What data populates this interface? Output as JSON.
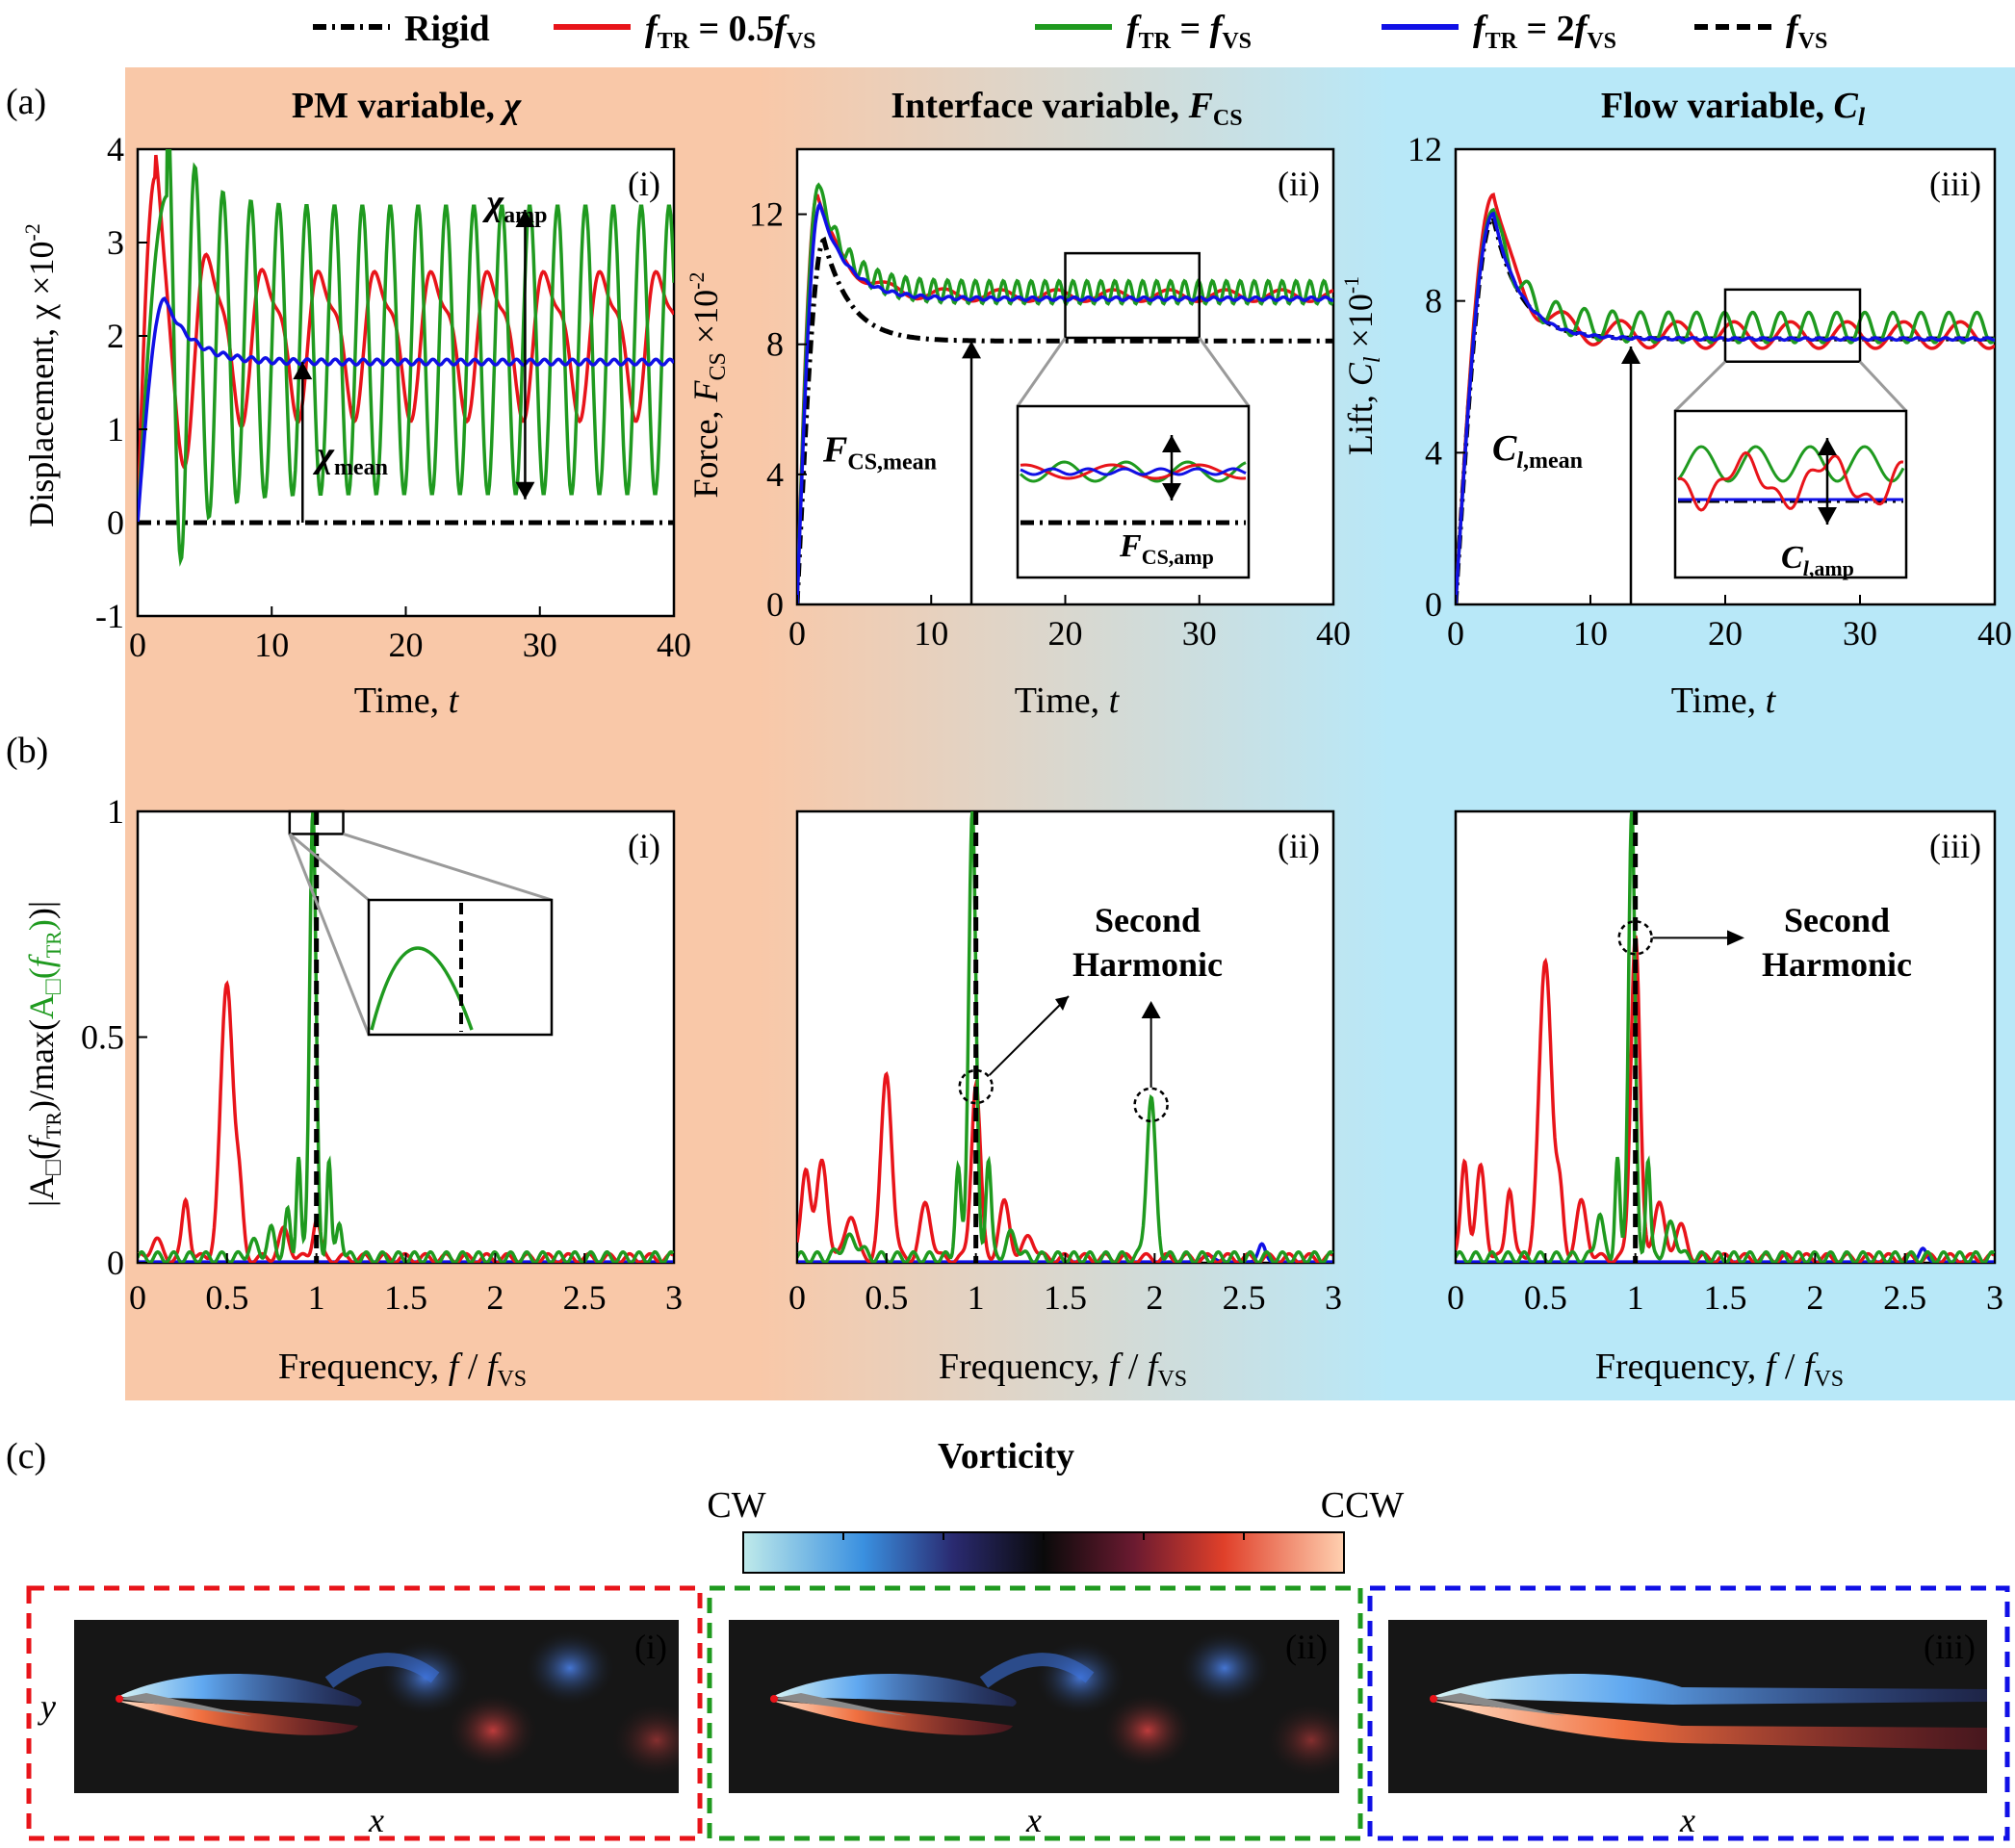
{
  "legend": [
    {
      "name": "Rigid",
      "color": "#000000",
      "dash": "dashdot"
    },
    {
      "name": "fTR = 0.5fVS",
      "color": "#e8141a",
      "dash": "solid"
    },
    {
      "name": "fTR = fVS",
      "color": "#1f9a1f",
      "dash": "solid"
    },
    {
      "name": "fTR = 2fVS",
      "color": "#1010e6",
      "dash": "solid"
    },
    {
      "name": "fVS",
      "color": "#000000",
      "dash": "dashed"
    }
  ],
  "row_labels": {
    "a": "(a)",
    "b": "(b)",
    "c": "(c)"
  },
  "colors": {
    "bg_left": "#f9c8a8",
    "bg_right": "#b8e8f8",
    "red": "#e8141a",
    "green": "#1f9a1f",
    "blue": "#1010e6",
    "black": "#000000",
    "gray": "#9a9a9a"
  },
  "columns": [
    {
      "title": "PM variable, χ",
      "ylabel": "Displacement, χ ×10⁻²",
      "xlabel": "Time, t",
      "panel": "(i)"
    },
    {
      "title": "Interface variable, FCS",
      "ylabel": "Force, FCS ×10⁻²",
      "xlabel": "Time, t",
      "panel": "(ii)"
    },
    {
      "title": "Flow variable, Cl",
      "ylabel": "Lift, Cl ×10⁻¹",
      "xlabel": "Time, t",
      "panel": "(iii)"
    }
  ],
  "annotations": {
    "chi_amp": "χamp",
    "chi_mean": "χmean",
    "fcs_mean": "FCS,mean",
    "fcs_amp": "FCS,amp",
    "cl_mean": "Cl,mean",
    "cl_amp": "Cl,amp",
    "second_harmonic": [
      "Second",
      "Harmonic"
    ]
  },
  "spectrum_ylabel": "|A□(fTR)/max(A□(fTR))|",
  "spectrum_xlabel": "Frequency, f / fVS",
  "vorticity": {
    "title": "Vorticity",
    "left": "CW",
    "right": "CCW",
    "xlabel": "x",
    "ylabel": "y",
    "panels": [
      "(i)",
      "(ii)",
      "(iii)"
    ]
  },
  "chart_data": [
    {
      "type": "line",
      "id": "a-i",
      "xlim": [
        0,
        40
      ],
      "ylim": [
        -1,
        4
      ],
      "xticks": [
        0,
        10,
        20,
        30,
        40
      ],
      "yticks": [
        -1,
        0,
        1,
        2,
        3,
        4
      ],
      "series": [
        {
          "name": "Rigid",
          "color": "#000000",
          "dash": "dashdot",
          "t": [
            0,
            40
          ],
          "y": [
            0,
            0
          ]
        },
        {
          "name": "fTR = 0.5fVS",
          "color": "#e8141a",
          "model": {
            "type": "osc",
            "t0": 0,
            "peak": 3.7,
            "tpeak": 1.3,
            "mean": 2.0,
            "amp": 0.7,
            "period": 4.2
          }
        },
        {
          "name": "fTR = fVS",
          "color": "#1f9a1f",
          "model": {
            "type": "osc",
            "t0": 0,
            "peak": 3.5,
            "tpeak": 2.2,
            "mean": 1.85,
            "amp": 1.55,
            "period": 2.08
          }
        },
        {
          "name": "fTR = 2fVS",
          "color": "#1010e6",
          "model": {
            "type": "settle",
            "peak": 2.4,
            "tpeak": 2.0,
            "mean": 1.72,
            "amp": 0.03,
            "period": 1.04
          }
        }
      ]
    },
    {
      "type": "line",
      "id": "a-ii",
      "xlim": [
        0,
        40
      ],
      "ylim": [
        0,
        14
      ],
      "xticks": [
        0,
        10,
        20,
        30,
        40
      ],
      "yticks": [
        0,
        4,
        8,
        12
      ],
      "series": [
        {
          "name": "Rigid",
          "color": "#000000",
          "dash": "dashdot",
          "model": {
            "type": "settle",
            "peak": 11.2,
            "tpeak": 2.0,
            "mean": 8.1,
            "amp": 0,
            "period": 2.08
          }
        },
        {
          "name": "fTR = 0.5fVS",
          "color": "#e8141a",
          "model": {
            "type": "settle",
            "peak": 12.6,
            "tpeak": 1.5,
            "mean": 9.5,
            "amp": 0.18,
            "period": 4.2
          }
        },
        {
          "name": "fTR = fVS",
          "color": "#1f9a1f",
          "model": {
            "type": "settle",
            "peak": 12.9,
            "tpeak": 1.6,
            "mean": 9.6,
            "amp": 0.35,
            "period": 1.04
          }
        },
        {
          "name": "fTR = 2fVS",
          "color": "#1010e6",
          "model": {
            "type": "settle",
            "peak": 12.3,
            "tpeak": 1.7,
            "mean": 9.4,
            "amp": 0.05,
            "period": 1.04
          }
        }
      ]
    },
    {
      "type": "line",
      "id": "a-iii",
      "xlim": [
        0,
        40
      ],
      "ylim": [
        0,
        12
      ],
      "xticks": [
        0,
        10,
        20,
        30,
        40
      ],
      "yticks": [
        0,
        4,
        8,
        12
      ],
      "series": [
        {
          "name": "Rigid",
          "color": "#000000",
          "dash": "dashdot",
          "model": {
            "type": "settle",
            "peak": 10.2,
            "tpeak": 2.8,
            "mean": 7.0,
            "amp": 0,
            "period": 2.08
          }
        },
        {
          "name": "fTR = 0.5fVS",
          "color": "#e8141a",
          "model": {
            "type": "settle",
            "peak": 10.8,
            "tpeak": 2.8,
            "mean": 7.1,
            "amp": 0.35,
            "period": 4.2
          }
        },
        {
          "name": "fTR = fVS",
          "color": "#1f9a1f",
          "model": {
            "type": "settle",
            "peak": 10.4,
            "tpeak": 2.8,
            "mean": 7.3,
            "amp": 0.4,
            "period": 2.08
          }
        },
        {
          "name": "fTR = 2fVS",
          "color": "#1010e6",
          "model": {
            "type": "settle",
            "peak": 10.3,
            "tpeak": 2.8,
            "mean": 7.0,
            "amp": 0.03,
            "period": 1.04
          }
        }
      ]
    },
    {
      "type": "line",
      "id": "b-i",
      "xlim": [
        0,
        3
      ],
      "ylim": [
        0,
        1
      ],
      "xticks": [
        "0",
        "0.5",
        "1",
        "1.5",
        "2",
        "2.5",
        "3"
      ],
      "yticks": [
        "0",
        "0.5",
        "1"
      ],
      "series": [
        {
          "name": "fTR = 0.5fVS",
          "color": "#e8141a",
          "peaks": [
            [
              0.5,
              0.61,
              0.035
            ],
            [
              0.27,
              0.13,
              0.02
            ],
            [
              0.57,
              0.12,
              0.02
            ],
            [
              0.82,
              0.06,
              0.03
            ],
            [
              1.0,
              0.09,
              0.02
            ],
            [
              0.1,
              0.04,
              0.03
            ]
          ]
        },
        {
          "name": "fTR = fVS",
          "color": "#1f9a1f",
          "peaks": [
            [
              0.98,
              1.0,
              0.018
            ],
            [
              0.9,
              0.22,
              0.012
            ],
            [
              1.07,
              0.22,
              0.012
            ],
            [
              0.84,
              0.1,
              0.015
            ],
            [
              1.13,
              0.08,
              0.015
            ],
            [
              0.75,
              0.06,
              0.02
            ],
            [
              0.65,
              0.03,
              0.03
            ]
          ]
        },
        {
          "name": "fTR = 2fVS",
          "color": "#1010e6",
          "peaks": []
        }
      ],
      "vline": {
        "x": 1.0,
        "label": "fVS"
      }
    },
    {
      "type": "line",
      "id": "b-ii",
      "xlim": [
        0,
        3
      ],
      "ylim": [
        0,
        1
      ],
      "xticks": [
        "0",
        "0.5",
        "1",
        "1.5",
        "2",
        "2.5",
        "3"
      ],
      "yticks": [],
      "series": [
        {
          "name": "fTR = 0.5fVS",
          "color": "#e8141a",
          "peaks": [
            [
              0.5,
              0.41,
              0.03
            ],
            [
              1.0,
              0.39,
              0.025
            ],
            [
              0.05,
              0.2,
              0.025
            ],
            [
              0.14,
              0.21,
              0.03
            ],
            [
              0.3,
              0.1,
              0.03
            ],
            [
              0.72,
              0.12,
              0.03
            ],
            [
              1.16,
              0.12,
              0.03
            ],
            [
              1.3,
              0.05,
              0.03
            ]
          ]
        },
        {
          "name": "fTR = fVS",
          "color": "#1f9a1f",
          "peaks": [
            [
              0.98,
              1.0,
              0.02
            ],
            [
              1.98,
              0.35,
              0.025
            ],
            [
              0.9,
              0.2,
              0.015
            ],
            [
              1.07,
              0.22,
              0.015
            ],
            [
              1.2,
              0.05,
              0.03
            ],
            [
              0.3,
              0.04,
              0.05
            ]
          ]
        },
        {
          "name": "fTR = 2fVS",
          "color": "#1010e6",
          "peaks": [
            [
              2.6,
              0.04,
              0.02
            ],
            [
              2.3,
              0.015,
              0.03
            ]
          ]
        }
      ],
      "vline": {
        "x": 1.0,
        "label": "fVS"
      },
      "circles": [
        [
          1.0,
          0.39
        ],
        [
          1.98,
          0.35
        ]
      ]
    },
    {
      "type": "line",
      "id": "b-iii",
      "xlim": [
        0,
        3
      ],
      "ylim": [
        0,
        1
      ],
      "xticks": [
        "0",
        "0.5",
        "1",
        "1.5",
        "2",
        "2.5",
        "3"
      ],
      "yticks": [],
      "series": [
        {
          "name": "fTR = 0.5fVS",
          "color": "#e8141a",
          "peaks": [
            [
              0.5,
              0.66,
              0.035
            ],
            [
              1.0,
              0.72,
              0.025
            ],
            [
              0.05,
              0.22,
              0.02
            ],
            [
              0.14,
              0.2,
              0.025
            ],
            [
              0.3,
              0.16,
              0.02
            ],
            [
              0.58,
              0.13,
              0.02
            ],
            [
              0.7,
              0.12,
              0.03
            ],
            [
              1.13,
              0.12,
              0.03
            ],
            [
              1.25,
              0.07,
              0.03
            ]
          ]
        },
        {
          "name": "fTR = fVS",
          "color": "#1f9a1f",
          "peaks": [
            [
              0.98,
              1.0,
              0.018
            ],
            [
              0.9,
              0.22,
              0.013
            ],
            [
              1.07,
              0.22,
              0.013
            ],
            [
              0.8,
              0.1,
              0.02
            ],
            [
              1.2,
              0.07,
              0.03
            ]
          ]
        },
        {
          "name": "fTR = 2fVS",
          "color": "#1010e6",
          "peaks": [
            [
              2.6,
              0.03,
              0.02
            ]
          ]
        }
      ],
      "vline": {
        "x": 1.0,
        "label": "fVS"
      },
      "circles": [
        [
          1.0,
          0.72
        ]
      ]
    }
  ]
}
